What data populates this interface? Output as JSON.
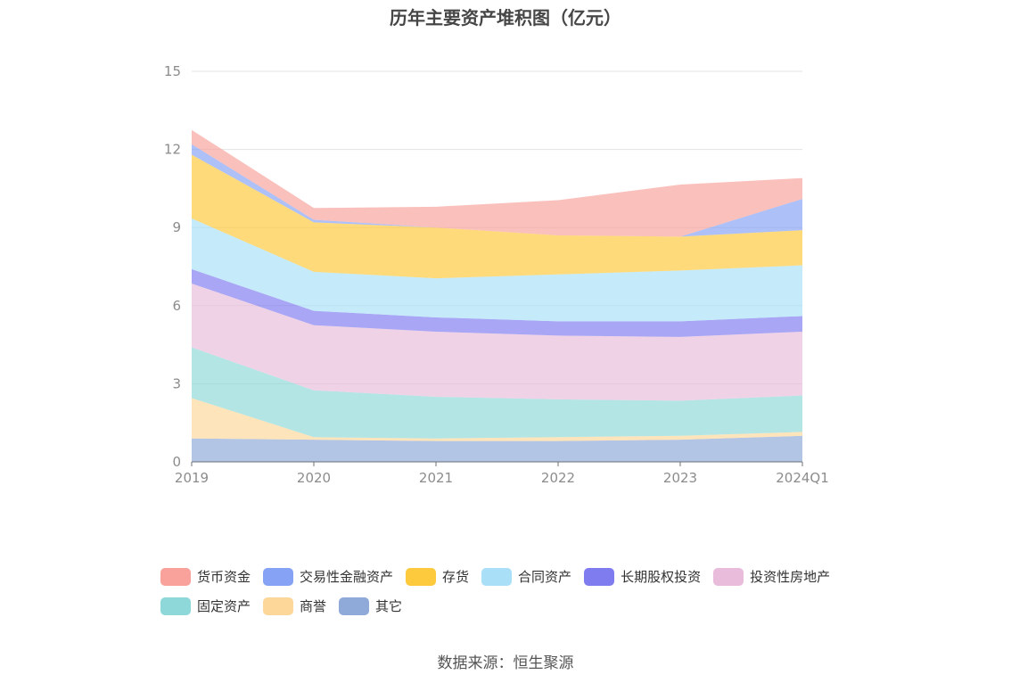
{
  "title": "历年主要资产堆积图（亿元）",
  "source": "数据来源：恒生聚源",
  "chart_data": {
    "type": "area",
    "stacked": true,
    "categories": [
      "2019",
      "2020",
      "2021",
      "2022",
      "2023",
      "2024Q1"
    ],
    "ylim": [
      0,
      15
    ],
    "yticks": [
      0,
      3,
      6,
      9,
      12,
      15
    ],
    "grid": true,
    "legend_position": "bottom",
    "series": [
      {
        "name": "其它",
        "color": "#8faad9",
        "values": [
          0.9,
          0.85,
          0.8,
          0.8,
          0.85,
          1.0
        ]
      },
      {
        "name": "商誉",
        "color": "#fdd79a",
        "values": [
          1.55,
          0.1,
          0.1,
          0.15,
          0.15,
          0.15
        ]
      },
      {
        "name": "固定资产",
        "color": "#8fd8d9",
        "values": [
          1.95,
          1.8,
          1.6,
          1.45,
          1.35,
          1.4
        ]
      },
      {
        "name": "投资性房地产",
        "color": "#e9bcdc",
        "values": [
          2.45,
          2.5,
          2.5,
          2.45,
          2.45,
          2.45
        ]
      },
      {
        "name": "长期股权投资",
        "color": "#7f7cf0",
        "values": [
          0.55,
          0.55,
          0.55,
          0.55,
          0.6,
          0.6
        ]
      },
      {
        "name": "合同资产",
        "color": "#a9e0f7",
        "values": [
          1.95,
          1.5,
          1.5,
          1.8,
          1.95,
          1.95
        ]
      },
      {
        "name": "存货",
        "color": "#fdc93d",
        "values": [
          2.45,
          1.9,
          1.95,
          1.5,
          1.3,
          1.35
        ]
      },
      {
        "name": "交易性金融资产",
        "color": "#86a2f5",
        "values": [
          0.4,
          0.1,
          0.0,
          0.0,
          0.0,
          1.2
        ]
      },
      {
        "name": "货币资金",
        "color": "#f8a29b",
        "values": [
          0.55,
          0.45,
          0.8,
          1.35,
          2.0,
          0.8
        ]
      }
    ]
  }
}
